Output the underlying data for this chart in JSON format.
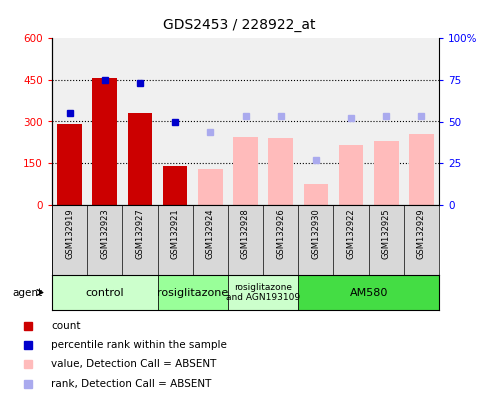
{
  "title": "GDS2453 / 228922_at",
  "samples": [
    "GSM132919",
    "GSM132923",
    "GSM132927",
    "GSM132921",
    "GSM132924",
    "GSM132928",
    "GSM132926",
    "GSM132930",
    "GSM132922",
    "GSM132925",
    "GSM132929"
  ],
  "bar_values": [
    290,
    455,
    330,
    140,
    130,
    245,
    240,
    75,
    215,
    230,
    255
  ],
  "bar_colors": [
    "#cc0000",
    "#cc0000",
    "#cc0000",
    "#cc0000",
    "#ffbbbb",
    "#ffbbbb",
    "#ffbbbb",
    "#ffbbbb",
    "#ffbbbb",
    "#ffbbbb",
    "#ffbbbb"
  ],
  "rank_values": [
    55,
    75,
    73,
    50,
    44,
    53,
    53,
    27,
    52,
    53,
    53
  ],
  "rank_colors": [
    "#0000cc",
    "#0000cc",
    "#0000cc",
    "#0000cc",
    "#aaaaee",
    "#aaaaee",
    "#aaaaee",
    "#aaaaee",
    "#aaaaee",
    "#aaaaee",
    "#aaaaee"
  ],
  "ylim_left": [
    0,
    600
  ],
  "ylim_right": [
    0,
    100
  ],
  "yticks_left": [
    0,
    150,
    300,
    450,
    600
  ],
  "yticks_right": [
    0,
    25,
    50,
    75,
    100
  ],
  "ytick_labels_left": [
    "0",
    "150",
    "300",
    "450",
    "600"
  ],
  "ytick_labels_right": [
    "0",
    "25",
    "50",
    "75",
    "100%"
  ],
  "agent_groups": [
    {
      "label": "control",
      "start": 0,
      "end": 2,
      "color": "#ccffcc"
    },
    {
      "label": "rosiglitazone",
      "start": 2,
      "end": 4,
      "color": "#99ff99"
    },
    {
      "label": "rosiglitazone\nand AGN193109",
      "start": 4,
      "end": 6,
      "color": "#ccffcc"
    },
    {
      "label": "AM580",
      "start": 6,
      "end": 10,
      "color": "#44dd44"
    }
  ],
  "legend_items": [
    {
      "label": "count",
      "color": "#cc0000"
    },
    {
      "label": "percentile rank within the sample",
      "color": "#0000cc"
    },
    {
      "label": "value, Detection Call = ABSENT",
      "color": "#ffbbbb"
    },
    {
      "label": "rank, Detection Call = ABSENT",
      "color": "#aaaaee"
    }
  ],
  "background_color": "#ffffff",
  "title_fontsize": 10,
  "tick_fontsize": 7.5,
  "sample_fontsize": 6,
  "legend_fontsize": 7.5
}
